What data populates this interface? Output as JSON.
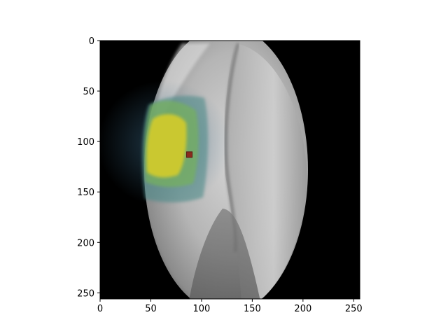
{
  "figure": {
    "image_description_visible": false,
    "x_ticks": [
      "0",
      "50",
      "100",
      "150",
      "200",
      "250"
    ],
    "y_ticks": [
      "0",
      "50",
      "100",
      "150",
      "200",
      "250"
    ],
    "x_tick_values": [
      0,
      50,
      100,
      150,
      200,
      250
    ],
    "y_tick_values": [
      0,
      50,
      100,
      150,
      200,
      250
    ],
    "x_range": [
      0,
      256
    ],
    "y_range": [
      0,
      256
    ],
    "marker": {
      "x": 88,
      "y": 113,
      "color": "#8a2a1e"
    },
    "colors": {
      "background": "#000000",
      "tissue": "#9a9a9a",
      "heat_low": "#4a7f8e",
      "heat_mid": "#6fae6a",
      "heat_high": "#d8cf2a"
    }
  }
}
